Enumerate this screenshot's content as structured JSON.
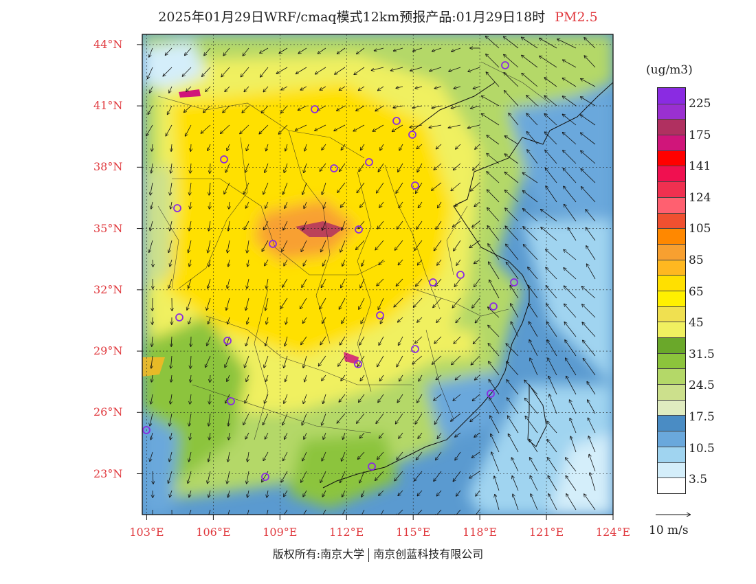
{
  "title": {
    "main": "2025年01月29日WRF/cmaq模式12km预报产品:01月29日18时",
    "species": "PM2.5"
  },
  "axes": {
    "lat_labels": [
      "44°N",
      "41°N",
      "38°N",
      "35°N",
      "32°N",
      "29°N",
      "26°N",
      "23°N"
    ],
    "lon_labels": [
      "103°E",
      "106°E",
      "109°E",
      "112°E",
      "115°E",
      "118°E",
      "121°E",
      "124°E"
    ],
    "lat_range": [
      21,
      44.5
    ],
    "lon_range": [
      102.8,
      124
    ]
  },
  "legend": {
    "unit": "(ug/m3)",
    "colors": [
      "#8a2be2",
      "#9a30d0",
      "#b03060",
      "#d0157a",
      "#ff0000",
      "#f01050",
      "#f03050",
      "#ff6070",
      "#f05030",
      "#ff8800",
      "#f8a030",
      "#ffb820",
      "#ffe000",
      "#fff000",
      "#f0e050",
      "#f0f060",
      "#6aa82a",
      "#8cc43c",
      "#b4d868",
      "#cce08c",
      "#e0ecc0",
      "#4a8cc4",
      "#6aa8dc",
      "#a0d4f0",
      "#d4eefa",
      "#ffffff"
    ],
    "labels": [
      "225",
      "175",
      "141",
      "124",
      "105",
      "85",
      "65",
      "45",
      "31.5",
      "24.5",
      "17.5",
      "10.5",
      "3.5"
    ]
  },
  "wind_reference": "10 m/s",
  "copyright": {
    "left": "版权所有:南京大学",
    "right": "南京创蓝科技有限公司"
  },
  "colors": {
    "axis_red": "#e0393e",
    "marker_purple": "#8a2be2"
  }
}
